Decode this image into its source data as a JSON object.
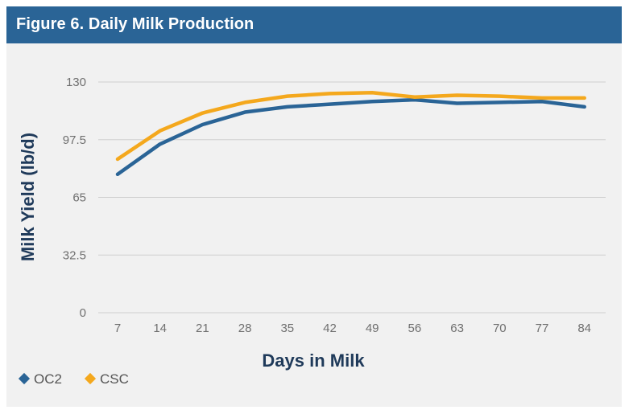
{
  "figure": {
    "title": "Figure 6. Daily Milk Production"
  },
  "chart_data": {
    "type": "line",
    "title": "Figure 6. Daily Milk Production",
    "xlabel": "Days in Milk",
    "ylabel": "Milk Yield (lb/d)",
    "ylim": [
      0,
      130
    ],
    "yticks": [
      "0",
      "32.5",
      "65",
      "97.5",
      "130"
    ],
    "yticks_values": [
      0,
      32.5,
      65,
      97.5,
      130
    ],
    "categories": [
      "7",
      "14",
      "21",
      "28",
      "35",
      "42",
      "49",
      "56",
      "63",
      "70",
      "77",
      "84"
    ],
    "grid": true,
    "legend_position": "bottom-left",
    "series": [
      {
        "name": "OC2",
        "color": "#2a6496",
        "values": [
          78,
          95,
          106,
          113,
          116,
          117.5,
          119,
          120,
          118,
          118.5,
          119,
          116
        ]
      },
      {
        "name": "CSC",
        "color": "#f4a81d",
        "values": [
          86.5,
          102.5,
          112.5,
          118.5,
          122,
          123.5,
          124,
          121.5,
          122.5,
          122,
          121,
          121
        ]
      }
    ]
  }
}
